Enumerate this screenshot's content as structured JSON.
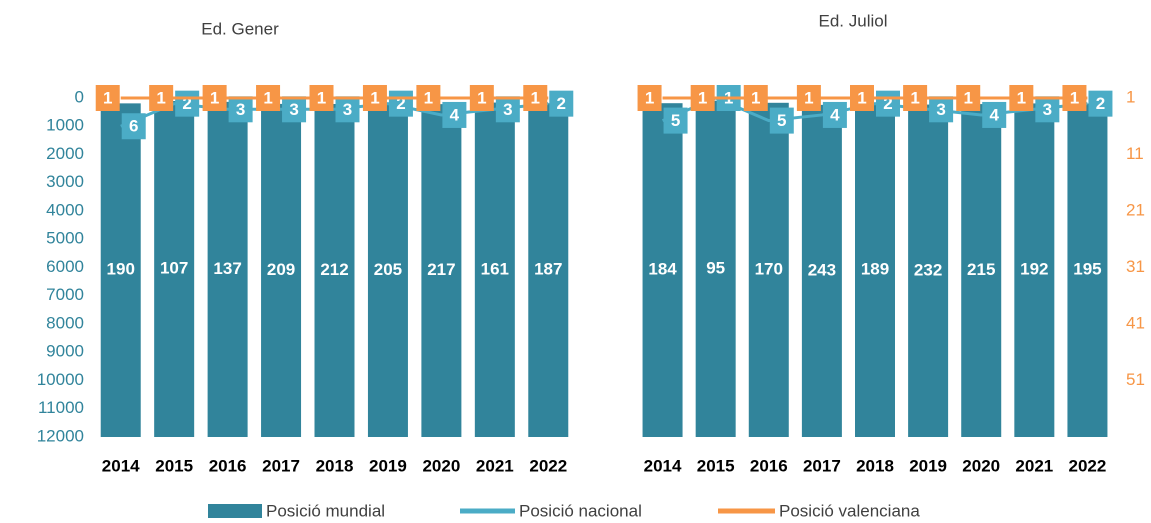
{
  "chart_data": [
    {
      "type": "bar",
      "title": "Ed. Gener",
      "categories": [
        "2014",
        "2015",
        "2016",
        "2017",
        "2018",
        "2019",
        "2020",
        "2021",
        "2022"
      ],
      "ylim": [
        0,
        12000
      ],
      "y_reversed": true,
      "yticks": [
        0,
        1000,
        2000,
        3000,
        4000,
        5000,
        6000,
        7000,
        8000,
        9000,
        10000,
        11000,
        12000
      ],
      "y2lim": [
        1,
        61
      ],
      "y2_reversed": true,
      "series": [
        {
          "name": "Posició mundial",
          "color": "#31849b",
          "values": [
            190,
            107,
            137,
            209,
            212,
            205,
            217,
            161,
            187
          ]
        },
        {
          "name": "Posició nacional",
          "color": "#4bacc6",
          "axis": "y2",
          "values": [
            6,
            2,
            3,
            3,
            3,
            2,
            4,
            3,
            2
          ]
        },
        {
          "name": "Posició valenciana",
          "color": "#f79646",
          "axis": "y2",
          "values": [
            1,
            1,
            1,
            1,
            1,
            1,
            1,
            1,
            1
          ]
        }
      ]
    },
    {
      "type": "bar",
      "title": "Ed. Juliol",
      "categories": [
        "2014",
        "2015",
        "2016",
        "2017",
        "2018",
        "2019",
        "2020",
        "2021",
        "2022"
      ],
      "ylim": [
        0,
        12000
      ],
      "y_reversed": true,
      "y2lim": [
        1,
        61
      ],
      "y2_reversed": true,
      "y2ticks": [
        1,
        11,
        21,
        31,
        41,
        51
      ],
      "series": [
        {
          "name": "Posició mundial",
          "color": "#31849b",
          "values": [
            184,
            95,
            170,
            243,
            189,
            232,
            215,
            192,
            195
          ]
        },
        {
          "name": "Posició nacional",
          "color": "#4bacc6",
          "axis": "y2",
          "values": [
            5,
            1,
            5,
            4,
            2,
            3,
            4,
            3,
            2
          ]
        },
        {
          "name": "Posició valenciana",
          "color": "#f79646",
          "axis": "y2",
          "values": [
            1,
            1,
            1,
            1,
            1,
            1,
            1,
            1,
            1
          ]
        }
      ]
    }
  ]
}
